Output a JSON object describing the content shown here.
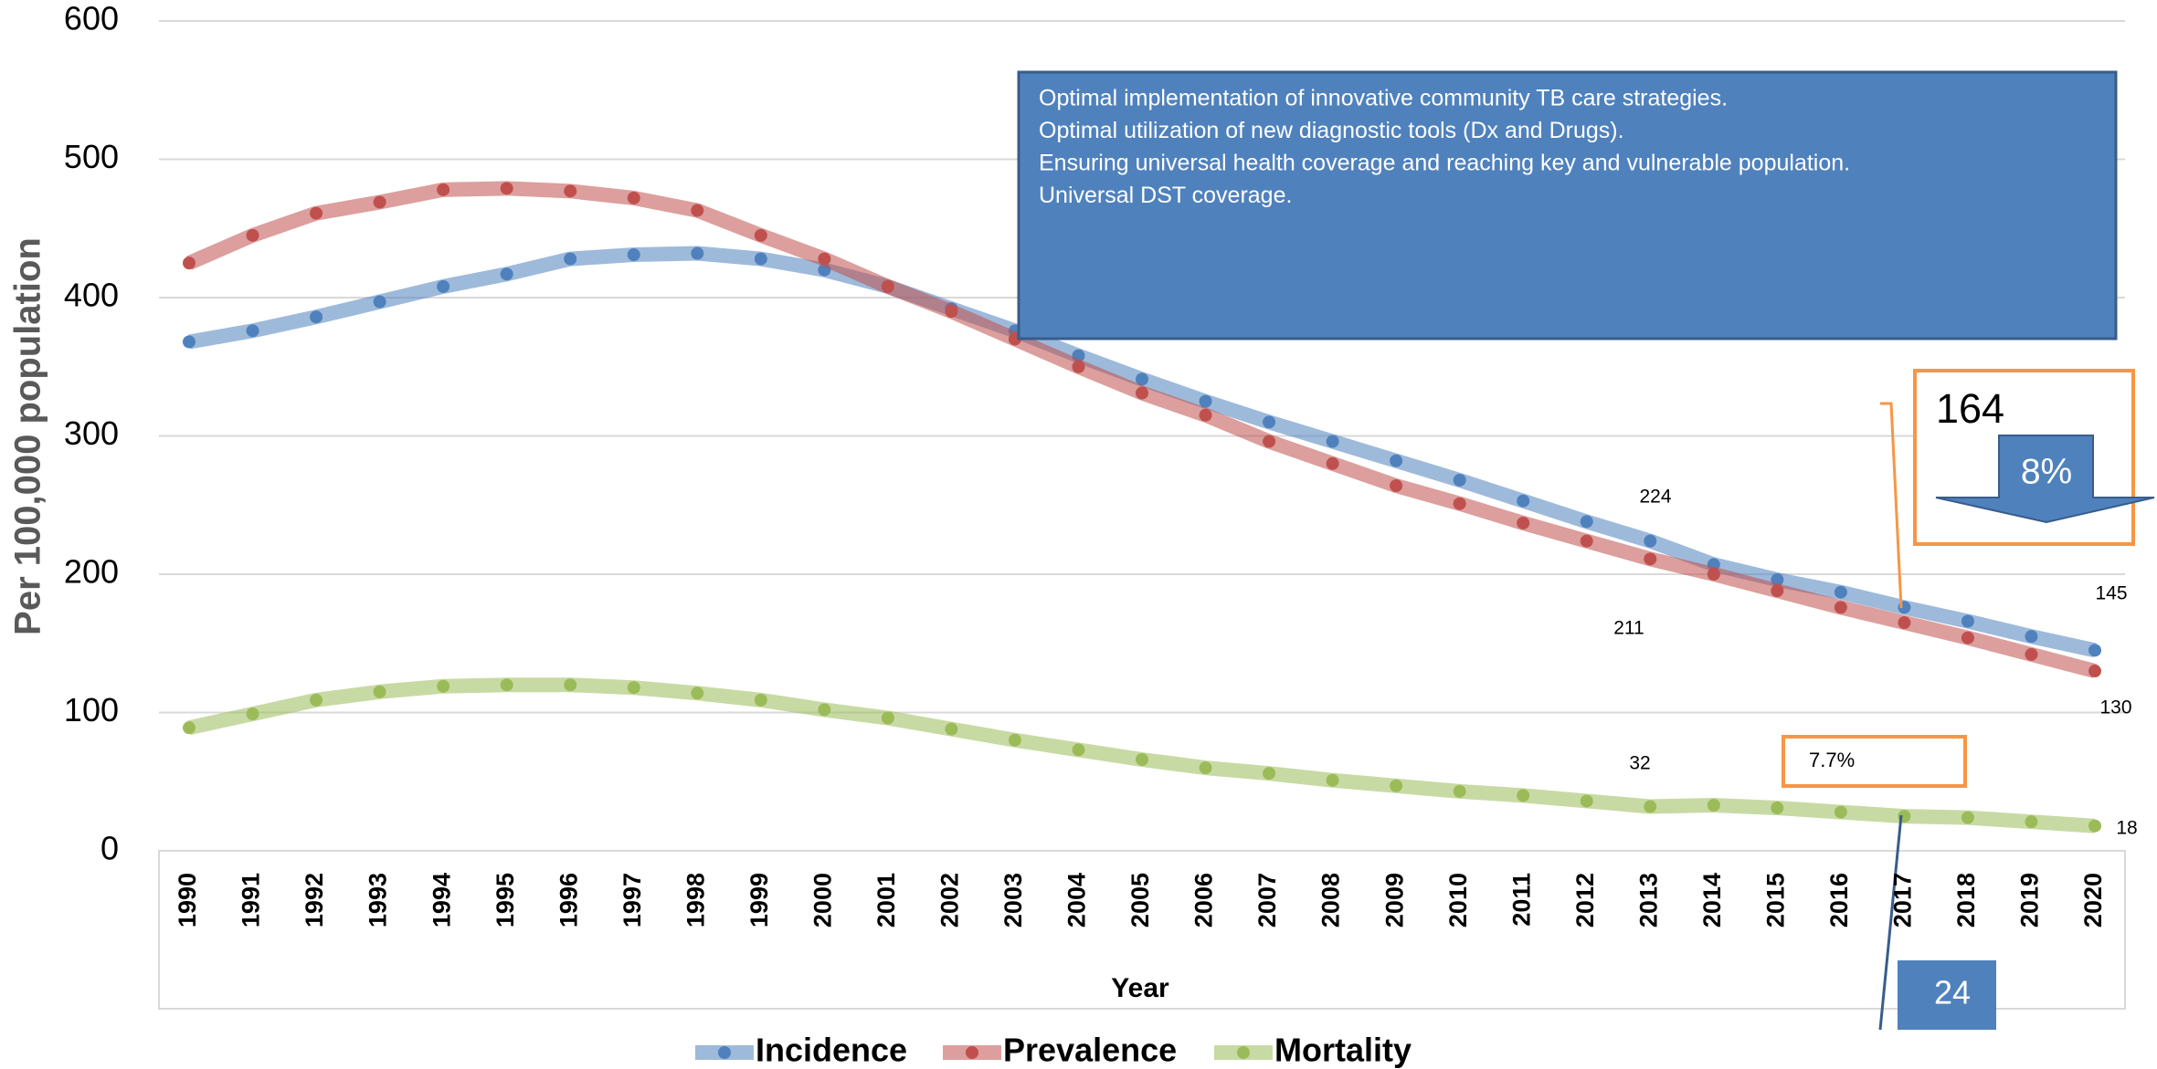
{
  "chart_data": {
    "type": "line",
    "ylabel": "Per 100,000 population",
    "xlabel": "Year",
    "categories": [
      "1990",
      "1991",
      "1992",
      "1993",
      "1994",
      "1995",
      "1996",
      "1997",
      "1998",
      "1999",
      "2000",
      "2001",
      "2002",
      "2003",
      "2004",
      "2005",
      "2006",
      "2007",
      "2008",
      "2009",
      "2010",
      "2011",
      "2012",
      "2013",
      "2014",
      "2015",
      "2016",
      "2017",
      "2018",
      "2019",
      "2020"
    ],
    "series": [
      {
        "name": "Incidence",
        "color": "#4f81bd",
        "values": [
          368,
          376,
          386,
          397,
          408,
          417,
          428,
          431,
          432,
          428,
          420,
          408,
          392,
          376,
          358,
          341,
          325,
          310,
          296,
          282,
          268,
          253,
          238,
          224,
          207,
          196,
          187,
          176,
          166,
          155,
          145
        ]
      },
      {
        "name": "Prevalence",
        "color": "#c0504d",
        "values": [
          425,
          445,
          461,
          469,
          478,
          479,
          477,
          472,
          463,
          445,
          428,
          408,
          390,
          370,
          350,
          331,
          315,
          296,
          280,
          264,
          251,
          237,
          224,
          211,
          200,
          188,
          176,
          165,
          154,
          142,
          130
        ]
      },
      {
        "name": "Mortality",
        "color": "#9bbb59",
        "values": [
          89,
          99,
          109,
          115,
          119,
          120,
          120,
          118,
          114,
          109,
          102,
          96,
          88,
          80,
          73,
          66,
          60,
          56,
          51,
          47,
          43,
          40,
          36,
          32,
          33,
          31,
          28,
          25,
          24,
          21,
          18
        ]
      }
    ],
    "ylim": [
      0,
      600
    ],
    "yticks": [
      0,
      100,
      200,
      300,
      400,
      500,
      600
    ],
    "grid": true,
    "legend": "bottom",
    "textbox": [
      "Optimal implementation of innovative community TB care strategies.",
      "Optimal utilization of new diagnostic tools (Dx and Drugs).",
      "Ensuring universal health coverage and reaching key and vulnerable population.",
      "Universal DST coverage."
    ],
    "annotations": [
      "164",
      "8%",
      "7.7%",
      "24"
    ]
  }
}
